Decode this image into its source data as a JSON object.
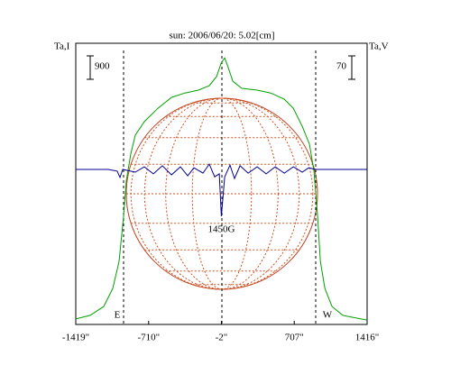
{
  "chart_data": {
    "type": "line",
    "title": "sun: 2006/06/20: 5.02[cm]",
    "xlim": [
      -1419,
      1416
    ],
    "xticks": [
      {
        "value": -1419,
        "label": "-1419\""
      },
      {
        "value": -710,
        "label": "-710\""
      },
      {
        "value": -2,
        "label": "-2\""
      },
      {
        "value": 707,
        "label": "707\""
      },
      {
        "value": 1416,
        "label": "1416\""
      }
    ],
    "ylim": [
      0,
      10800
    ],
    "y2lim": [
      -463,
      377
    ],
    "series": [
      {
        "name": "Ta,I",
        "color": "#00a000",
        "x": [
          -1419,
          -1279,
          -1147,
          -1059,
          -998,
          -954,
          -927,
          -883,
          -840,
          -752,
          -620,
          -488,
          -357,
          -225,
          -120,
          -49,
          -5,
          30,
          65,
          109,
          197,
          346,
          478,
          610,
          698,
          785,
          855,
          899,
          934,
          961,
          1005,
          1075,
          1180,
          1356,
          1416
        ],
        "values": [
          210,
          350,
          690,
          1380,
          2420,
          4150,
          5540,
          6570,
          7270,
          7790,
          8300,
          8720,
          8890,
          9000,
          9170,
          9520,
          10030,
          10240,
          9860,
          9340,
          9070,
          9000,
          8890,
          8650,
          8300,
          7610,
          6920,
          5880,
          4150,
          2420,
          1380,
          690,
          350,
          210,
          170
        ]
      },
      {
        "name": "Ta,V",
        "color": "#000090",
        "axis": "y2",
        "x": [
          -1419,
          -1103,
          -1015,
          -989,
          -962,
          -840,
          -752,
          -664,
          -576,
          -488,
          -401,
          -330,
          -269,
          -181,
          -120,
          -67,
          -23,
          -2,
          30,
          82,
          126,
          179,
          258,
          346,
          434,
          522,
          610,
          698,
          785,
          847,
          917,
          1416
        ],
        "values": [
          0,
          0,
          -5,
          -24,
          0,
          -8,
          8,
          -13,
          11,
          -16,
          8,
          -19,
          5,
          -11,
          16,
          -22,
          -13,
          -140,
          -22,
          13,
          -27,
          11,
          -11,
          8,
          -13,
          8,
          -11,
          8,
          -8,
          5,
          0,
          0
        ]
      }
    ],
    "scale_bars": [
      {
        "value": 900,
        "axis": "y"
      },
      {
        "value": 70,
        "axis": "y2"
      }
    ],
    "annotations": {
      "dip": "1450G",
      "east": "E",
      "west": "W"
    }
  }
}
